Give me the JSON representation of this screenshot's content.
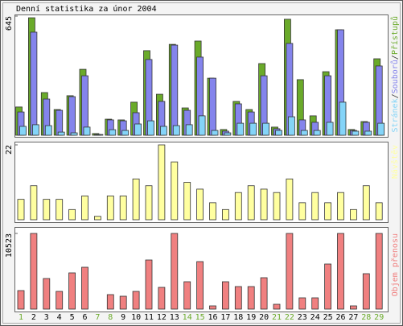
{
  "chart_data": [
    {
      "type": "bar",
      "title": "Denní statistika za únor 2004",
      "ylim": [
        0,
        645
      ],
      "yticks": [
        645
      ],
      "legend_separator": "/",
      "series": [
        {
          "name": "Přístupů",
          "color": "#6aaa2a",
          "values": [
            153,
            636,
            231,
            139,
            214,
            357,
            9,
            87,
            83,
            179,
            458,
            222,
            492,
            148,
            510,
            309,
            31,
            183,
            139,
            388,
            44,
            628,
            301,
            105,
            344,
            571,
            31,
            74,
            414
          ]
        },
        {
          "name": "Souborů",
          "color": "#8484ec",
          "values": [
            126,
            558,
            196,
            135,
            209,
            322,
            4,
            83,
            78,
            122,
            410,
            183,
            488,
            135,
            423,
            309,
            22,
            170,
            126,
            322,
            35,
            497,
            83,
            70,
            322,
            571,
            26,
            70,
            375
          ]
        },
        {
          "name": "Stránek",
          "color": "#84d4f8",
          "values": [
            48,
            57,
            52,
            17,
            13,
            44,
            4,
            30,
            26,
            61,
            78,
            48,
            52,
            57,
            105,
            26,
            13,
            65,
            65,
            65,
            26,
            100,
            26,
            26,
            70,
            179,
            22,
            22,
            65
          ]
        }
      ]
    },
    {
      "type": "bar",
      "ylim": [
        0,
        22
      ],
      "yticks": [
        22
      ],
      "series": [
        {
          "name": "Návštěv",
          "color": "#ffffa0",
          "values": [
            6,
            10,
            6,
            6,
            3,
            7,
            1,
            7,
            7,
            12,
            10,
            22,
            17,
            11,
            9,
            5,
            3,
            8,
            10,
            9,
            8,
            12,
            5,
            8,
            5,
            8,
            3,
            10,
            5
          ]
        }
      ]
    },
    {
      "type": "bar",
      "ylim": [
        0,
        10523
      ],
      "yticks": [
        10523
      ],
      "categories": [
        "1",
        "2",
        "3",
        "4",
        "5",
        "6",
        "7",
        "8",
        "9",
        "10",
        "11",
        "12",
        "13",
        "14",
        "15",
        "16",
        "17",
        "18",
        "19",
        "20",
        "21",
        "22",
        "23",
        "24",
        "25",
        "26",
        "27",
        "28",
        "29"
      ],
      "category_colors": [
        "#6aaa2a",
        "#000",
        "#000",
        "#000",
        "#000",
        "#000",
        "#6aaa2a",
        "#6aaa2a",
        "#000",
        "#000",
        "#000",
        "#000",
        "#000",
        "#6aaa2a",
        "#6aaa2a",
        "#000",
        "#000",
        "#000",
        "#000",
        "#000",
        "#6aaa2a",
        "#6aaa2a",
        "#000",
        "#000",
        "#000",
        "#000",
        "#000",
        "#6aaa2a",
        "#6aaa2a"
      ],
      "series": [
        {
          "name": "Objem přenosu",
          "color": "#f08080",
          "values": [
            2575,
            10523,
            4254,
            2463,
            5038,
            5821,
            0,
            2015,
            1791,
            2463,
            6829,
            3023,
            10523,
            3806,
            6605,
            448,
            3806,
            3134,
            3134,
            4366,
            672,
            10523,
            1567,
            1567,
            6269,
            10523,
            448,
            4926,
            10523
          ]
        }
      ]
    }
  ]
}
